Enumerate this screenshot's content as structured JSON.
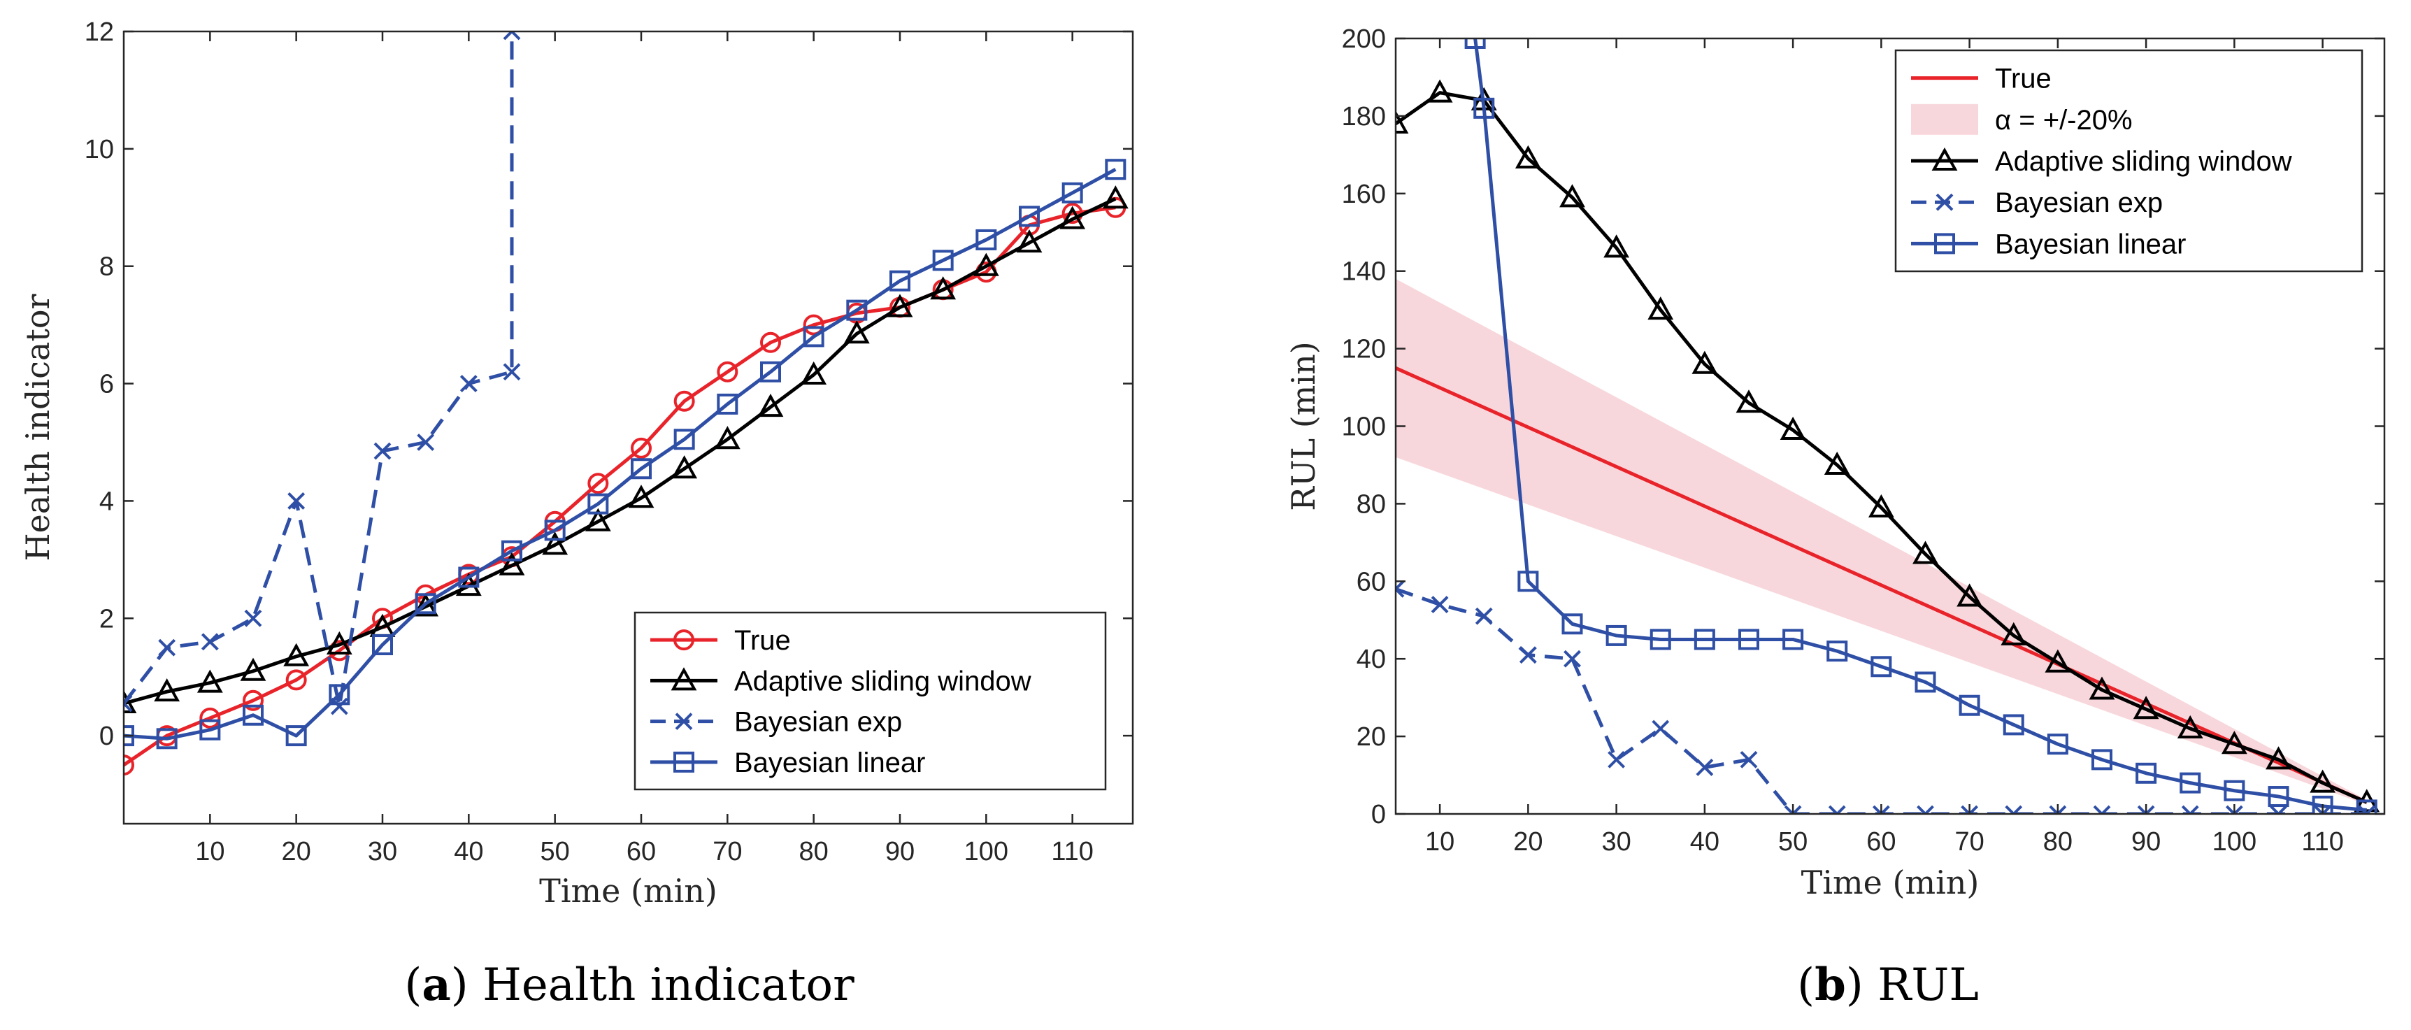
{
  "chart_data": [
    {
      "type": "line",
      "caption_letter": "a",
      "caption_text": "Health indicator",
      "xlabel": "Time (min)",
      "ylabel": "Health indicator",
      "xlim": [
        0,
        117
      ],
      "ylim": [
        -1.5,
        12
      ],
      "xticks": [
        10,
        20,
        30,
        40,
        50,
        60,
        70,
        80,
        90,
        100,
        110
      ],
      "yticks": [
        0,
        2,
        4,
        6,
        8,
        10,
        12
      ],
      "legend_position": "bottom-right",
      "series": [
        {
          "name": "True",
          "color": "#e8232a",
          "marker": "circle",
          "dash": "solid",
          "x": [
            0,
            5,
            10,
            15,
            20,
            25,
            30,
            35,
            40,
            45,
            50,
            55,
            60,
            65,
            70,
            75,
            80,
            85,
            90,
            95,
            100,
            105,
            110,
            115
          ],
          "y": [
            -0.5,
            0.0,
            0.3,
            0.6,
            0.95,
            1.45,
            2.0,
            2.4,
            2.75,
            3.05,
            3.65,
            4.3,
            4.9,
            5.7,
            6.2,
            6.7,
            7.0,
            7.2,
            7.3,
            7.6,
            7.9,
            8.7,
            8.9,
            9.0
          ]
        },
        {
          "name": "Adaptive sliding window",
          "color": "#000000",
          "marker": "triangle",
          "dash": "solid",
          "x": [
            0,
            5,
            10,
            15,
            20,
            25,
            30,
            35,
            40,
            45,
            50,
            55,
            60,
            65,
            70,
            75,
            80,
            85,
            90,
            95,
            100,
            105,
            110,
            115
          ],
          "y": [
            0.55,
            0.75,
            0.9,
            1.1,
            1.35,
            1.55,
            1.85,
            2.2,
            2.55,
            2.9,
            3.25,
            3.65,
            4.05,
            4.55,
            5.05,
            5.6,
            6.15,
            6.85,
            7.3,
            7.6,
            8.0,
            8.4,
            8.8,
            9.15
          ]
        },
        {
          "name": "Bayesian exp",
          "color": "#2e4fa5",
          "marker": "x",
          "dash": "dashed",
          "x": [
            0,
            5,
            10,
            15,
            20,
            25,
            30,
            35,
            40,
            45,
            45
          ],
          "y": [
            0.55,
            1.5,
            1.6,
            2.0,
            4.0,
            0.5,
            4.85,
            5.0,
            6.0,
            6.2,
            12.0
          ]
        },
        {
          "name": "Bayesian linear",
          "color": "#2e4fa5",
          "marker": "square",
          "dash": "solid",
          "x": [
            0,
            5,
            10,
            15,
            20,
            25,
            30,
            35,
            40,
            45,
            50,
            55,
            60,
            65,
            70,
            75,
            80,
            85,
            90,
            95,
            100,
            105,
            110,
            115
          ],
          "y": [
            0.0,
            -0.05,
            0.1,
            0.35,
            0.0,
            0.7,
            1.55,
            2.25,
            2.7,
            3.15,
            3.5,
            3.95,
            4.55,
            5.05,
            5.65,
            6.2,
            6.8,
            7.25,
            7.75,
            8.1,
            8.45,
            8.85,
            9.25,
            9.65
          ]
        }
      ]
    },
    {
      "type": "line",
      "caption_letter": "b",
      "caption_text": "RUL",
      "xlabel": "Time (min)",
      "ylabel": "RUL (min)",
      "xlim": [
        5,
        117
      ],
      "ylim": [
        0,
        200
      ],
      "xticks": [
        10,
        20,
        30,
        40,
        50,
        60,
        70,
        80,
        90,
        100,
        110
      ],
      "yticks": [
        0,
        20,
        40,
        60,
        80,
        100,
        120,
        140,
        160,
        180,
        200
      ],
      "legend_position": "top-right",
      "band": {
        "name": "α = +/-20%",
        "color": "#f8d7dc",
        "x": [
          5,
          115
        ],
        "upper": [
          138,
          3.6
        ],
        "lower": [
          92,
          2.4
        ]
      },
      "series": [
        {
          "name": "True",
          "color": "#e8232a",
          "marker": "none",
          "dash": "solid",
          "x": [
            5,
            115
          ],
          "y": [
            115,
            3
          ]
        },
        {
          "name": "Adaptive sliding window",
          "color": "#000000",
          "marker": "triangle",
          "dash": "solid",
          "x": [
            5,
            10,
            15,
            20,
            25,
            30,
            35,
            40,
            45,
            50,
            55,
            60,
            65,
            70,
            75,
            80,
            85,
            90,
            95,
            100,
            105,
            110,
            115
          ],
          "y": [
            178,
            186,
            184,
            169,
            159,
            146,
            130,
            116,
            106,
            99,
            90,
            79,
            67,
            56,
            46,
            39,
            32,
            27,
            22,
            18,
            14,
            8,
            3
          ]
        },
        {
          "name": "Bayesian exp",
          "color": "#2e4fa5",
          "marker": "x",
          "dash": "dashed",
          "x": [
            5,
            10,
            15,
            20,
            25,
            30,
            35,
            40,
            45,
            50,
            55,
            60,
            65,
            70,
            75,
            80,
            85,
            90,
            95,
            100,
            105,
            110,
            115
          ],
          "y": [
            58,
            54,
            51,
            41,
            40,
            14,
            22,
            12,
            14,
            0,
            0,
            0,
            0,
            0,
            0,
            0,
            0,
            0,
            0,
            0,
            0,
            0,
            0
          ]
        },
        {
          "name": "Bayesian linear",
          "color": "#2e4fa5",
          "marker": "square",
          "dash": "solid",
          "x": [
            14,
            15,
            20,
            25,
            30,
            35,
            40,
            45,
            50,
            55,
            60,
            65,
            70,
            75,
            80,
            85,
            90,
            95,
            100,
            105,
            110,
            115
          ],
          "y": [
            200,
            182,
            60,
            49,
            46,
            45,
            45,
            45,
            45,
            42,
            38,
            34,
            28,
            23,
            18,
            14,
            10.5,
            8,
            6,
            4.5,
            2,
            1
          ]
        }
      ]
    }
  ]
}
